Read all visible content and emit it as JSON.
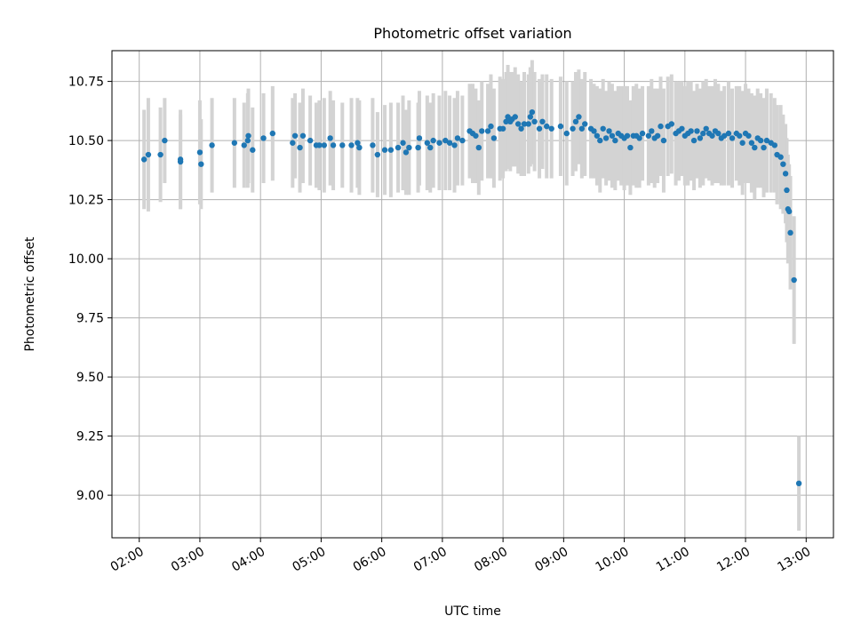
{
  "chart_data": {
    "type": "scatter",
    "title": "Photometric offset variation",
    "xlabel": "UTC time",
    "ylabel": "Photometric offset",
    "x_unit": "hours UTC",
    "xlim": [
      1.55,
      13.45
    ],
    "ylim": [
      8.82,
      10.88
    ],
    "xticks": [
      {
        "value": 2,
        "label": "02:00"
      },
      {
        "value": 3,
        "label": "03:00"
      },
      {
        "value": 4,
        "label": "04:00"
      },
      {
        "value": 5,
        "label": "05:00"
      },
      {
        "value": 6,
        "label": "06:00"
      },
      {
        "value": 7,
        "label": "07:00"
      },
      {
        "value": 8,
        "label": "08:00"
      },
      {
        "value": 9,
        "label": "09:00"
      },
      {
        "value": 10,
        "label": "10:00"
      },
      {
        "value": 11,
        "label": "11:00"
      },
      {
        "value": 12,
        "label": "12:00"
      },
      {
        "value": 13,
        "label": "13:00"
      }
    ],
    "yticks": [
      {
        "value": 9.0,
        "label": "9.00"
      },
      {
        "value": 9.25,
        "label": "9.25"
      },
      {
        "value": 9.5,
        "label": "9.50"
      },
      {
        "value": 9.75,
        "label": "9.75"
      },
      {
        "value": 10.0,
        "label": "10.00"
      },
      {
        "value": 10.25,
        "label": "10.25"
      },
      {
        "value": 10.5,
        "label": "10.50"
      },
      {
        "value": 10.75,
        "label": "10.75"
      }
    ],
    "grid": true,
    "colors": {
      "points": "#1f77b4",
      "errorbars": "#d3d3d3",
      "grid": "#b0b0b0"
    },
    "series": [
      {
        "name": "offset",
        "points": [
          [
            2.08,
            10.42,
            0.21
          ],
          [
            2.15,
            10.44,
            0.24
          ],
          [
            2.35,
            10.44,
            0.2
          ],
          [
            2.42,
            10.5,
            0.18
          ],
          [
            2.68,
            10.41,
            0.2
          ],
          [
            2.68,
            10.42,
            0.21
          ],
          [
            3.0,
            10.45,
            0.22
          ],
          [
            3.02,
            10.4,
            0.19
          ],
          [
            3.2,
            10.48,
            0.2
          ],
          [
            3.57,
            10.49,
            0.19
          ],
          [
            3.73,
            10.48,
            0.18
          ],
          [
            3.79,
            10.5,
            0.2
          ],
          [
            3.8,
            10.52,
            0.2
          ],
          [
            3.87,
            10.46,
            0.18
          ],
          [
            4.05,
            10.51,
            0.19
          ],
          [
            4.2,
            10.53,
            0.2
          ],
          [
            4.53,
            10.49,
            0.19
          ],
          [
            4.57,
            10.52,
            0.18
          ],
          [
            4.65,
            10.47,
            0.19
          ],
          [
            4.7,
            10.52,
            0.2
          ],
          [
            4.82,
            10.5,
            0.19
          ],
          [
            4.92,
            10.48,
            0.18
          ],
          [
            4.97,
            10.48,
            0.19
          ],
          [
            5.05,
            10.48,
            0.2
          ],
          [
            5.15,
            10.51,
            0.2
          ],
          [
            5.2,
            10.48,
            0.19
          ],
          [
            5.35,
            10.48,
            0.18
          ],
          [
            5.5,
            10.48,
            0.2
          ],
          [
            5.6,
            10.49,
            0.19
          ],
          [
            5.63,
            10.47,
            0.2
          ],
          [
            5.85,
            10.48,
            0.2
          ],
          [
            5.93,
            10.44,
            0.18
          ],
          [
            6.05,
            10.46,
            0.19
          ],
          [
            6.15,
            10.46,
            0.2
          ],
          [
            6.27,
            10.47,
            0.19
          ],
          [
            6.35,
            10.49,
            0.2
          ],
          [
            6.4,
            10.45,
            0.18
          ],
          [
            6.45,
            10.47,
            0.2
          ],
          [
            6.6,
            10.47,
            0.19
          ],
          [
            6.62,
            10.51,
            0.2
          ],
          [
            6.75,
            10.49,
            0.2
          ],
          [
            6.8,
            10.47,
            0.19
          ],
          [
            6.85,
            10.5,
            0.2
          ],
          [
            6.95,
            10.49,
            0.2
          ],
          [
            7.05,
            10.5,
            0.21
          ],
          [
            7.12,
            10.49,
            0.2
          ],
          [
            7.2,
            10.48,
            0.2
          ],
          [
            7.25,
            10.51,
            0.2
          ],
          [
            7.33,
            10.5,
            0.19
          ],
          [
            7.45,
            10.54,
            0.2
          ],
          [
            7.5,
            10.53,
            0.21
          ],
          [
            7.55,
            10.52,
            0.2
          ],
          [
            7.6,
            10.47,
            0.2
          ],
          [
            7.65,
            10.54,
            0.21
          ],
          [
            7.75,
            10.54,
            0.2
          ],
          [
            7.8,
            10.56,
            0.22
          ],
          [
            7.85,
            10.51,
            0.21
          ],
          [
            7.95,
            10.55,
            0.22
          ],
          [
            8.0,
            10.55,
            0.21
          ],
          [
            8.05,
            10.58,
            0.21
          ],
          [
            8.08,
            10.6,
            0.22
          ],
          [
            8.12,
            10.58,
            0.21
          ],
          [
            8.15,
            10.59,
            0.2
          ],
          [
            8.2,
            10.6,
            0.21
          ],
          [
            8.25,
            10.57,
            0.21
          ],
          [
            8.3,
            10.55,
            0.2
          ],
          [
            8.35,
            10.57,
            0.22
          ],
          [
            8.42,
            10.57,
            0.21
          ],
          [
            8.45,
            10.6,
            0.21
          ],
          [
            8.48,
            10.62,
            0.22
          ],
          [
            8.52,
            10.58,
            0.21
          ],
          [
            8.6,
            10.55,
            0.21
          ],
          [
            8.65,
            10.58,
            0.2
          ],
          [
            8.72,
            10.56,
            0.22
          ],
          [
            8.8,
            10.55,
            0.21
          ],
          [
            8.95,
            10.56,
            0.21
          ],
          [
            9.05,
            10.53,
            0.22
          ],
          [
            9.15,
            10.55,
            0.2
          ],
          [
            9.2,
            10.58,
            0.21
          ],
          [
            9.25,
            10.6,
            0.2
          ],
          [
            9.3,
            10.55,
            0.21
          ],
          [
            9.35,
            10.57,
            0.22
          ],
          [
            9.45,
            10.55,
            0.21
          ],
          [
            9.5,
            10.54,
            0.2
          ],
          [
            9.55,
            10.52,
            0.21
          ],
          [
            9.6,
            10.5,
            0.22
          ],
          [
            9.65,
            10.55,
            0.21
          ],
          [
            9.7,
            10.51,
            0.2
          ],
          [
            9.75,
            10.54,
            0.21
          ],
          [
            9.8,
            10.52,
            0.22
          ],
          [
            9.85,
            10.5,
            0.21
          ],
          [
            9.9,
            10.53,
            0.2
          ],
          [
            9.95,
            10.52,
            0.21
          ],
          [
            10.0,
            10.51,
            0.22
          ],
          [
            10.05,
            10.52,
            0.21
          ],
          [
            10.1,
            10.47,
            0.2
          ],
          [
            10.15,
            10.52,
            0.21
          ],
          [
            10.2,
            10.52,
            0.22
          ],
          [
            10.25,
            10.51,
            0.21
          ],
          [
            10.3,
            10.53,
            0.2
          ],
          [
            10.4,
            10.52,
            0.21
          ],
          [
            10.45,
            10.54,
            0.22
          ],
          [
            10.5,
            10.51,
            0.21
          ],
          [
            10.55,
            10.52,
            0.2
          ],
          [
            10.6,
            10.56,
            0.21
          ],
          [
            10.65,
            10.5,
            0.22
          ],
          [
            10.72,
            10.56,
            0.21
          ],
          [
            10.78,
            10.57,
            0.21
          ],
          [
            10.85,
            10.53,
            0.22
          ],
          [
            10.9,
            10.54,
            0.21
          ],
          [
            10.95,
            10.55,
            0.2
          ],
          [
            11.0,
            10.52,
            0.21
          ],
          [
            11.05,
            10.53,
            0.22
          ],
          [
            11.1,
            10.54,
            0.21
          ],
          [
            11.15,
            10.5,
            0.21
          ],
          [
            11.2,
            10.54,
            0.2
          ],
          [
            11.25,
            10.51,
            0.21
          ],
          [
            11.3,
            10.53,
            0.22
          ],
          [
            11.35,
            10.55,
            0.21
          ],
          [
            11.4,
            10.53,
            0.2
          ],
          [
            11.45,
            10.52,
            0.21
          ],
          [
            11.5,
            10.54,
            0.22
          ],
          [
            11.55,
            10.53,
            0.21
          ],
          [
            11.6,
            10.51,
            0.2
          ],
          [
            11.65,
            10.52,
            0.21
          ],
          [
            11.72,
            10.53,
            0.22
          ],
          [
            11.78,
            10.51,
            0.21
          ],
          [
            11.85,
            10.53,
            0.2
          ],
          [
            11.9,
            10.52,
            0.21
          ],
          [
            11.95,
            10.49,
            0.22
          ],
          [
            12.0,
            10.53,
            0.21
          ],
          [
            12.05,
            10.52,
            0.2
          ],
          [
            12.1,
            10.49,
            0.21
          ],
          [
            12.15,
            10.47,
            0.22
          ],
          [
            12.2,
            10.51,
            0.21
          ],
          [
            12.25,
            10.5,
            0.2
          ],
          [
            12.3,
            10.47,
            0.21
          ],
          [
            12.35,
            10.5,
            0.22
          ],
          [
            12.42,
            10.49,
            0.21
          ],
          [
            12.48,
            10.48,
            0.2
          ],
          [
            12.52,
            10.44,
            0.21
          ],
          [
            12.58,
            10.43,
            0.22
          ],
          [
            12.62,
            10.4,
            0.21
          ],
          [
            12.66,
            10.36,
            0.21
          ],
          [
            12.68,
            10.29,
            0.22
          ],
          [
            12.7,
            10.21,
            0.23
          ],
          [
            12.72,
            10.2,
            0.2
          ],
          [
            12.74,
            10.11,
            0.24
          ],
          [
            12.8,
            9.91,
            0.27
          ],
          [
            12.88,
            9.05,
            0.2
          ]
        ]
      }
    ]
  }
}
